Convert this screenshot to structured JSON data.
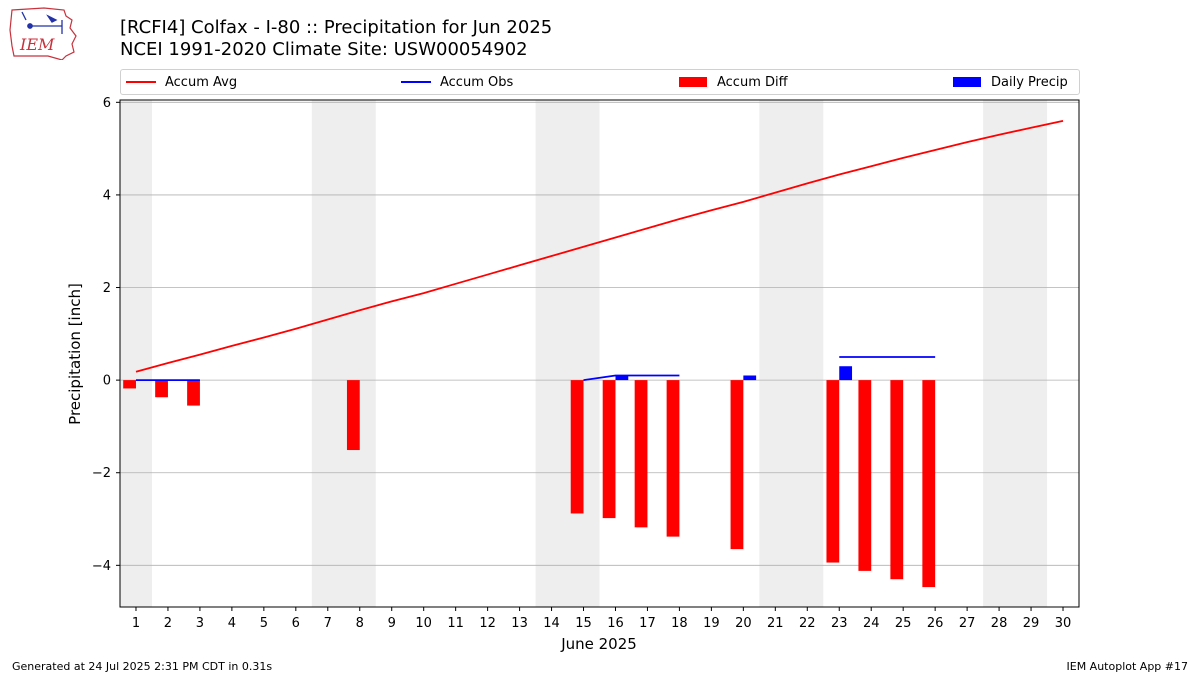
{
  "header": {
    "title_line1": "[RCFI4] Colfax - I-80 :: Precipitation for Jun 2025",
    "title_line2": "NCEI 1991-2020 Climate Site: USW00054902",
    "logo_text": "IEM"
  },
  "footer": {
    "generated": "Generated at 24 Jul 2025 2:31 PM CDT in 0.31s",
    "app": "IEM Autoplot App #17"
  },
  "colors": {
    "avg": "#ff0000",
    "obs": "#0000ff",
    "diff": "#ff0000",
    "daily": "#0000ff",
    "weekend": "#eeeeee",
    "grid": "#b0b0b0"
  },
  "chart_data": {
    "type": "bar",
    "title": "[RCFI4] Colfax - I-80 :: Precipitation for Jun 2025",
    "xlabel": "June 2025",
    "ylabel": "Precipitation [inch]",
    "xlim": [
      0.5,
      30.5
    ],
    "ylim": [
      -4.9,
      6.05
    ],
    "yticks": [
      -4,
      -2,
      0,
      2,
      4,
      6
    ],
    "ytick_labels": [
      "−4",
      "−2",
      "0",
      "2",
      "4",
      "6"
    ],
    "xticks": [
      1,
      2,
      3,
      4,
      5,
      6,
      7,
      8,
      9,
      10,
      11,
      12,
      13,
      14,
      15,
      16,
      17,
      18,
      19,
      20,
      21,
      22,
      23,
      24,
      25,
      26,
      27,
      28,
      29,
      30
    ],
    "grid": "horizontal",
    "legend_position": "top",
    "weekend_shading": [
      [
        0.5,
        1.5
      ],
      [
        6.5,
        8.5
      ],
      [
        13.5,
        15.5
      ],
      [
        20.5,
        22.5
      ],
      [
        27.5,
        29.5
      ]
    ],
    "series": [
      {
        "name": "Accum Avg",
        "kind": "line",
        "x": [
          1,
          2,
          3,
          4,
          5,
          6,
          7,
          8,
          9,
          10,
          11,
          12,
          13,
          14,
          15,
          16,
          17,
          18,
          19,
          20,
          21,
          22,
          23,
          24,
          25,
          26,
          27,
          28,
          29,
          30
        ],
        "values": [
          0.18,
          0.37,
          0.55,
          0.74,
          0.92,
          1.11,
          1.31,
          1.51,
          1.7,
          1.88,
          2.08,
          2.28,
          2.48,
          2.68,
          2.88,
          3.08,
          3.28,
          3.48,
          3.67,
          3.85,
          4.05,
          4.25,
          4.44,
          4.62,
          4.8,
          4.97,
          5.14,
          5.3,
          5.45,
          5.6
        ]
      },
      {
        "name": "Accum Obs",
        "kind": "line",
        "segments": [
          {
            "x": [
              1,
              2,
              3
            ],
            "values": [
              0.0,
              0.0,
              0.0
            ]
          },
          {
            "x": [
              15,
              16,
              17,
              18
            ],
            "values": [
              0.0,
              0.1,
              0.1,
              0.1
            ]
          },
          {
            "x": [
              23,
              24,
              25,
              26
            ],
            "values": [
              0.5,
              0.5,
              0.5,
              0.5
            ]
          }
        ]
      },
      {
        "name": "Accum Diff",
        "kind": "bar",
        "x": [
          1,
          2,
          3,
          8,
          15,
          16,
          17,
          18,
          20,
          23,
          24,
          25,
          26
        ],
        "values": [
          -0.18,
          -0.37,
          -0.55,
          -1.51,
          -2.88,
          -2.98,
          -3.18,
          -3.38,
          -3.65,
          -3.94,
          -4.12,
          -4.3,
          -4.47
        ]
      },
      {
        "name": "Daily Precip",
        "kind": "bar",
        "x": [
          16,
          20,
          23
        ],
        "values": [
          0.1,
          0.1,
          0.3
        ]
      }
    ]
  }
}
